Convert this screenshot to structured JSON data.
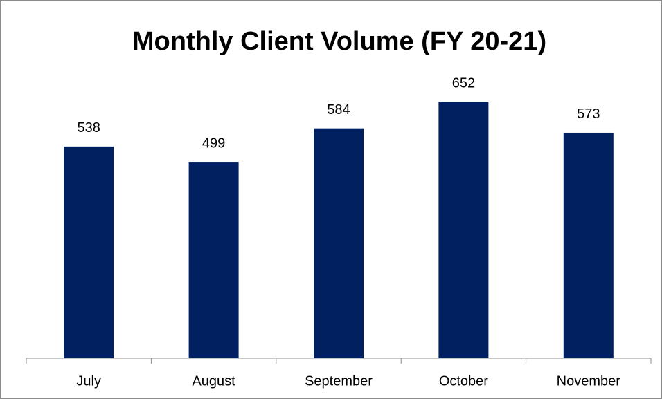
{
  "chart_data": {
    "type": "bar",
    "title": "Monthly Client Volume (FY 20-21)",
    "categories": [
      "July",
      "August",
      "September",
      "October",
      "November"
    ],
    "values": [
      538,
      499,
      584,
      652,
      573
    ],
    "color": "#002060"
  }
}
